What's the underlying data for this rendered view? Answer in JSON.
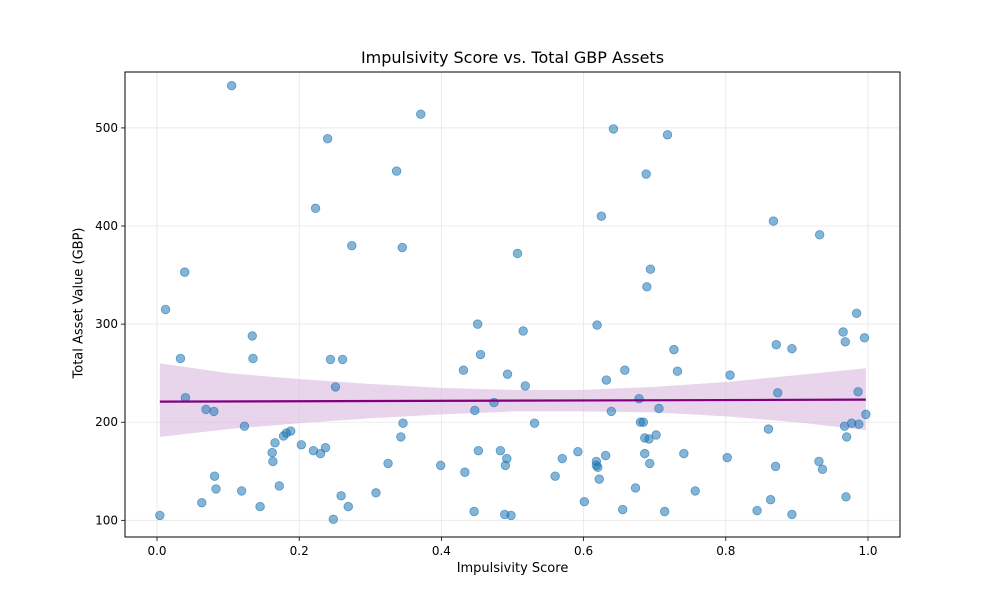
{
  "chart_data": {
    "type": "scatter",
    "title": "Impulsivity Score vs. Total GBP Assets",
    "xlabel": "Impulsivity Score",
    "ylabel": "Total Asset Value (GBP)",
    "xlim": [
      -0.045,
      1.045
    ],
    "ylim": [
      83,
      557
    ],
    "x_ticks": [
      0.0,
      0.2,
      0.4,
      0.6,
      0.8,
      1.0
    ],
    "x_tick_labels": [
      "0.0",
      "0.2",
      "0.4",
      "0.6",
      "0.8",
      "1.0"
    ],
    "y_ticks": [
      100,
      200,
      300,
      400,
      500
    ],
    "y_tick_labels": [
      "100",
      "200",
      "300",
      "400",
      "500"
    ],
    "grid": true,
    "colors": {
      "points": "#1f77b4",
      "trend_line": "#800080",
      "confidence_band": "#dcbde0"
    },
    "points": [
      {
        "x": 0.004,
        "y": 105
      },
      {
        "x": 0.012,
        "y": 315
      },
      {
        "x": 0.033,
        "y": 265
      },
      {
        "x": 0.039,
        "y": 353
      },
      {
        "x": 0.04,
        "y": 225
      },
      {
        "x": 0.063,
        "y": 118
      },
      {
        "x": 0.069,
        "y": 213
      },
      {
        "x": 0.08,
        "y": 211
      },
      {
        "x": 0.081,
        "y": 145
      },
      {
        "x": 0.083,
        "y": 132
      },
      {
        "x": 0.105,
        "y": 543
      },
      {
        "x": 0.119,
        "y": 130
      },
      {
        "x": 0.123,
        "y": 196
      },
      {
        "x": 0.134,
        "y": 288
      },
      {
        "x": 0.135,
        "y": 265
      },
      {
        "x": 0.145,
        "y": 114
      },
      {
        "x": 0.162,
        "y": 169
      },
      {
        "x": 0.163,
        "y": 160
      },
      {
        "x": 0.166,
        "y": 179
      },
      {
        "x": 0.172,
        "y": 135
      },
      {
        "x": 0.178,
        "y": 186
      },
      {
        "x": 0.182,
        "y": 189
      },
      {
        "x": 0.188,
        "y": 191
      },
      {
        "x": 0.203,
        "y": 177
      },
      {
        "x": 0.22,
        "y": 171
      },
      {
        "x": 0.223,
        "y": 418
      },
      {
        "x": 0.23,
        "y": 168
      },
      {
        "x": 0.237,
        "y": 174
      },
      {
        "x": 0.24,
        "y": 489
      },
      {
        "x": 0.244,
        "y": 264
      },
      {
        "x": 0.248,
        "y": 101
      },
      {
        "x": 0.251,
        "y": 236
      },
      {
        "x": 0.259,
        "y": 125
      },
      {
        "x": 0.261,
        "y": 264
      },
      {
        "x": 0.269,
        "y": 114
      },
      {
        "x": 0.274,
        "y": 380
      },
      {
        "x": 0.308,
        "y": 128
      },
      {
        "x": 0.325,
        "y": 158
      },
      {
        "x": 0.337,
        "y": 456
      },
      {
        "x": 0.343,
        "y": 185
      },
      {
        "x": 0.345,
        "y": 378
      },
      {
        "x": 0.346,
        "y": 199
      },
      {
        "x": 0.371,
        "y": 514
      },
      {
        "x": 0.399,
        "y": 156
      },
      {
        "x": 0.431,
        "y": 253
      },
      {
        "x": 0.433,
        "y": 149
      },
      {
        "x": 0.446,
        "y": 109
      },
      {
        "x": 0.447,
        "y": 212
      },
      {
        "x": 0.451,
        "y": 300
      },
      {
        "x": 0.452,
        "y": 171
      },
      {
        "x": 0.455,
        "y": 269
      },
      {
        "x": 0.474,
        "y": 220
      },
      {
        "x": 0.483,
        "y": 171
      },
      {
        "x": 0.489,
        "y": 106
      },
      {
        "x": 0.49,
        "y": 156
      },
      {
        "x": 0.492,
        "y": 163
      },
      {
        "x": 0.493,
        "y": 249
      },
      {
        "x": 0.498,
        "y": 105
      },
      {
        "x": 0.507,
        "y": 372
      },
      {
        "x": 0.515,
        "y": 293
      },
      {
        "x": 0.518,
        "y": 237
      },
      {
        "x": 0.531,
        "y": 199
      },
      {
        "x": 0.56,
        "y": 145
      },
      {
        "x": 0.57,
        "y": 163
      },
      {
        "x": 0.592,
        "y": 170
      },
      {
        "x": 0.601,
        "y": 119
      },
      {
        "x": 0.618,
        "y": 160
      },
      {
        "x": 0.618,
        "y": 156
      },
      {
        "x": 0.619,
        "y": 299
      },
      {
        "x": 0.62,
        "y": 154
      },
      {
        "x": 0.622,
        "y": 142
      },
      {
        "x": 0.625,
        "y": 410
      },
      {
        "x": 0.631,
        "y": 166
      },
      {
        "x": 0.632,
        "y": 243
      },
      {
        "x": 0.639,
        "y": 211
      },
      {
        "x": 0.642,
        "y": 499
      },
      {
        "x": 0.655,
        "y": 111
      },
      {
        "x": 0.658,
        "y": 253
      },
      {
        "x": 0.673,
        "y": 133
      },
      {
        "x": 0.678,
        "y": 224
      },
      {
        "x": 0.68,
        "y": 200
      },
      {
        "x": 0.684,
        "y": 200
      },
      {
        "x": 0.686,
        "y": 168
      },
      {
        "x": 0.686,
        "y": 184
      },
      {
        "x": 0.688,
        "y": 453
      },
      {
        "x": 0.689,
        "y": 338
      },
      {
        "x": 0.692,
        "y": 183
      },
      {
        "x": 0.693,
        "y": 158
      },
      {
        "x": 0.694,
        "y": 356
      },
      {
        "x": 0.702,
        "y": 187
      },
      {
        "x": 0.706,
        "y": 214
      },
      {
        "x": 0.714,
        "y": 109
      },
      {
        "x": 0.718,
        "y": 493
      },
      {
        "x": 0.727,
        "y": 274
      },
      {
        "x": 0.732,
        "y": 252
      },
      {
        "x": 0.741,
        "y": 168
      },
      {
        "x": 0.757,
        "y": 130
      },
      {
        "x": 0.802,
        "y": 164
      },
      {
        "x": 0.806,
        "y": 248
      },
      {
        "x": 0.844,
        "y": 110
      },
      {
        "x": 0.86,
        "y": 193
      },
      {
        "x": 0.863,
        "y": 121
      },
      {
        "x": 0.867,
        "y": 405
      },
      {
        "x": 0.87,
        "y": 155
      },
      {
        "x": 0.871,
        "y": 279
      },
      {
        "x": 0.873,
        "y": 230
      },
      {
        "x": 0.893,
        "y": 275
      },
      {
        "x": 0.893,
        "y": 106
      },
      {
        "x": 0.931,
        "y": 160
      },
      {
        "x": 0.932,
        "y": 391
      },
      {
        "x": 0.936,
        "y": 152
      },
      {
        "x": 0.965,
        "y": 292
      },
      {
        "x": 0.967,
        "y": 196
      },
      {
        "x": 0.968,
        "y": 282
      },
      {
        "x": 0.969,
        "y": 124
      },
      {
        "x": 0.97,
        "y": 185
      },
      {
        "x": 0.977,
        "y": 199
      },
      {
        "x": 0.984,
        "y": 311
      },
      {
        "x": 0.986,
        "y": 231
      },
      {
        "x": 0.987,
        "y": 198
      },
      {
        "x": 0.995,
        "y": 286
      },
      {
        "x": 0.997,
        "y": 208
      }
    ],
    "trend_line": {
      "x": [
        0.004,
        0.997
      ],
      "y": [
        221,
        223
      ]
    },
    "confidence_band": {
      "x": [
        0.004,
        0.1,
        0.2,
        0.3,
        0.4,
        0.5,
        0.6,
        0.7,
        0.8,
        0.9,
        0.997
      ],
      "upper": [
        260,
        250,
        244,
        239,
        235,
        233,
        233,
        236,
        241,
        248,
        255
      ],
      "lower": [
        185,
        193,
        199,
        204,
        208,
        211,
        211,
        210,
        206,
        200,
        192
      ]
    }
  }
}
